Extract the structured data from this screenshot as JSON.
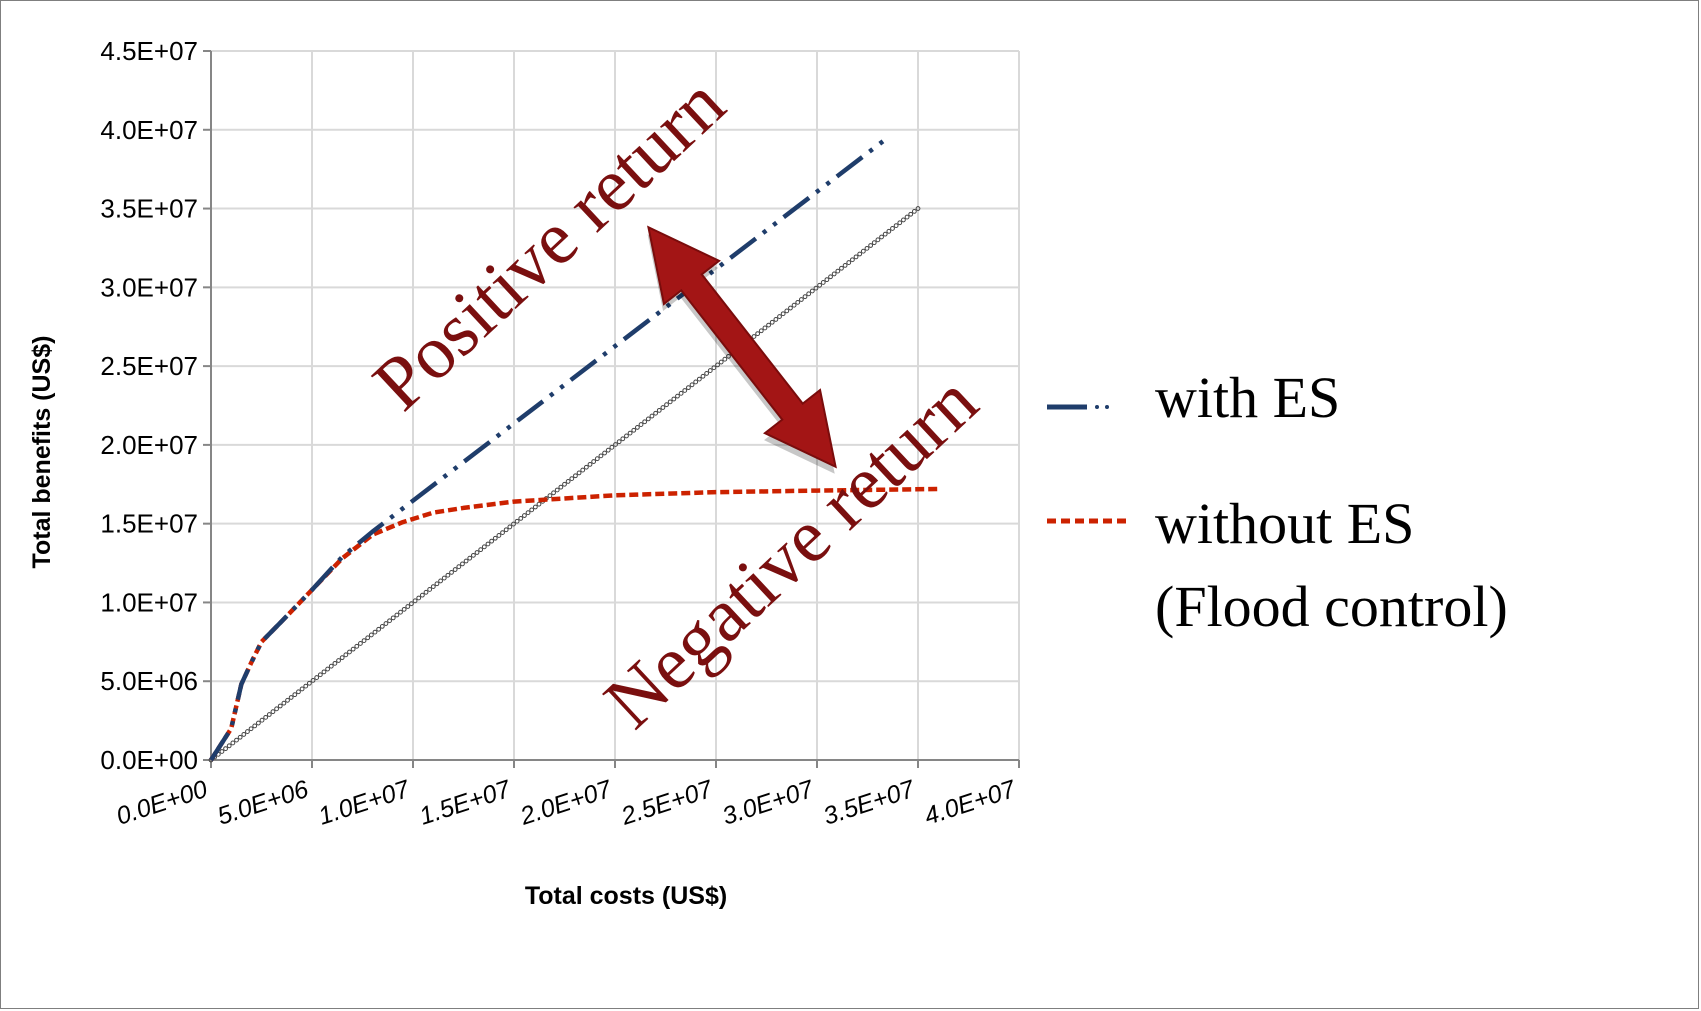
{
  "chart_data": {
    "type": "line",
    "title": "",
    "xlabel": "Total costs (US$)",
    "ylabel": "Total benefits (US$)",
    "xlim": [
      0,
      40000000
    ],
    "ylim": [
      0,
      45000000
    ],
    "x_ticks": [
      "0.0E+00",
      "5.0E+06",
      "1.0E+07",
      "1.5E+07",
      "2.0E+07",
      "2.5E+07",
      "3.0E+07",
      "3.5E+07",
      "4.0E+07"
    ],
    "y_ticks": [
      "0.0E+00",
      "5.0E+06",
      "1.0E+07",
      "1.5E+07",
      "2.0E+07",
      "2.5E+07",
      "3.0E+07",
      "3.5E+07",
      "4.0E+07",
      "4.5E+07"
    ],
    "grid": true,
    "legend_position": "right",
    "series": [
      {
        "name": "with ES",
        "color": "#1f3d6b",
        "style": "dash-dot-dot",
        "x": [
          0,
          500000,
          1000000,
          1500000,
          2000000,
          2500000,
          3500000,
          5000000,
          6500000,
          8000000,
          33500000
        ],
        "y": [
          0,
          1000000,
          2000000,
          4800000,
          6200000,
          7500000,
          8800000,
          10800000,
          12900000,
          14500000,
          39500000
        ]
      },
      {
        "name": "without ES\n(Flood control)",
        "color": "#cc2200",
        "style": "dashed",
        "x": [
          0,
          500000,
          1000000,
          1500000,
          2000000,
          2500000,
          3500000,
          5000000,
          6500000,
          8000000,
          9500000,
          11000000,
          12500000,
          15000000,
          20000000,
          25000000,
          30000000,
          36000000
        ],
        "y": [
          0,
          1000000,
          2000000,
          4800000,
          6200000,
          7500000,
          8800000,
          10800000,
          12800000,
          14300000,
          15100000,
          15700000,
          16000000,
          16400000,
          16800000,
          17000000,
          17100000,
          17200000
        ]
      },
      {
        "name": "",
        "color": "#444444",
        "style": "open-circle-markers",
        "x": [
          0,
          35000000
        ],
        "y": [
          0,
          35000000
        ]
      }
    ],
    "legend": {
      "with_es": "with ES",
      "without_es_line1": "without ES",
      "without_es_line2": "(Flood control)"
    },
    "annotations": {
      "positive": "Positive return",
      "negative": "Negative return",
      "arrow_color": "#a31515"
    }
  }
}
